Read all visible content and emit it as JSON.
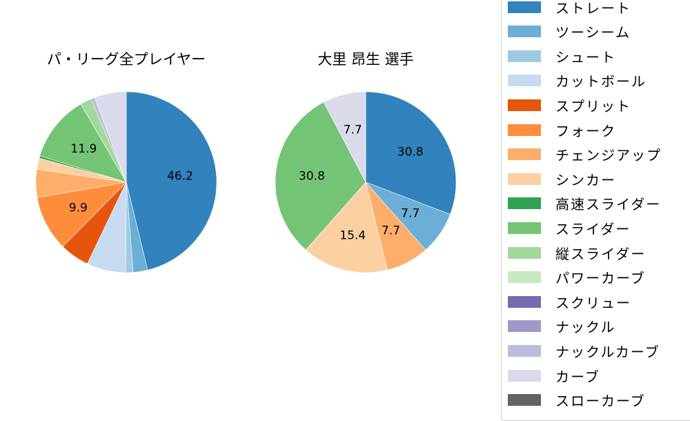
{
  "chart_data": [
    {
      "type": "pie",
      "title": "パ・リーグ全プレイヤー",
      "center": [
        183,
        264
      ],
      "radius": 131,
      "start_angle_deg": 90,
      "direction": "clockwise",
      "slices": [
        {
          "label": "ストレート",
          "value": 46.2,
          "color": "#3182bd",
          "show_label": true
        },
        {
          "label": "ツーシーム",
          "value": 2.6,
          "color": "#6baed6",
          "show_label": false
        },
        {
          "label": "シュート",
          "value": 1.3,
          "color": "#9ecae1",
          "show_label": false
        },
        {
          "label": "カットボール",
          "value": 7.0,
          "color": "#c6dbef",
          "show_label": false
        },
        {
          "label": "スプリット",
          "value": 5.3,
          "color": "#e6550d",
          "show_label": false
        },
        {
          "label": "フォーク",
          "value": 9.9,
          "color": "#fd8d3c",
          "show_label": true
        },
        {
          "label": "チェンジアップ",
          "value": 5.0,
          "color": "#fdae6b",
          "show_label": false
        },
        {
          "label": "シンカー",
          "value": 2.0,
          "color": "#fdd0a2",
          "show_label": false
        },
        {
          "label": "高速スライダー",
          "value": 0.4,
          "color": "#31a354",
          "show_label": false
        },
        {
          "label": "スライダー",
          "value": 11.9,
          "color": "#74c476",
          "show_label": true
        },
        {
          "label": "縦スライダー",
          "value": 2.0,
          "color": "#a1d99b",
          "show_label": false
        },
        {
          "label": "ナックルカーブ",
          "value": 0.7,
          "color": "#bcbddc",
          "show_label": false
        },
        {
          "label": "カーブ",
          "value": 5.7,
          "color": "#dadaeb",
          "show_label": false
        }
      ]
    },
    {
      "type": "pie",
      "title": "大里 昂生  選手",
      "center": [
        530,
        264
      ],
      "radius": 131,
      "start_angle_deg": 90,
      "direction": "clockwise",
      "slices": [
        {
          "label": "ストレート",
          "value": 30.8,
          "color": "#3182bd",
          "show_label": true
        },
        {
          "label": "ツーシーム",
          "value": 7.7,
          "color": "#6baed6",
          "show_label": true
        },
        {
          "label": "チェンジアップ",
          "value": 7.7,
          "color": "#fdae6b",
          "show_label": true
        },
        {
          "label": "シンカー",
          "value": 15.4,
          "color": "#fdd0a2",
          "show_label": true
        },
        {
          "label": "スライダー",
          "value": 30.8,
          "color": "#74c476",
          "show_label": true
        },
        {
          "label": "カーブ",
          "value": 7.7,
          "color": "#dadaeb",
          "show_label": true
        }
      ]
    }
  ],
  "titles": {
    "left": "パ・リーグ全プレイヤー",
    "right": "大里 昂生  選手"
  },
  "legend": {
    "items": [
      {
        "label": "ストレート",
        "color": "#3182bd"
      },
      {
        "label": "ツーシーム",
        "color": "#6baed6"
      },
      {
        "label": "シュート",
        "color": "#9ecae1"
      },
      {
        "label": "カットボール",
        "color": "#c6dbef"
      },
      {
        "label": "スプリット",
        "color": "#e6550d"
      },
      {
        "label": "フォーク",
        "color": "#fd8d3c"
      },
      {
        "label": "チェンジアップ",
        "color": "#fdae6b"
      },
      {
        "label": "シンカー",
        "color": "#fdd0a2"
      },
      {
        "label": "高速スライダー",
        "color": "#31a354"
      },
      {
        "label": "スライダー",
        "color": "#74c476"
      },
      {
        "label": "縦スライダー",
        "color": "#a1d99b"
      },
      {
        "label": "パワーカーブ",
        "color": "#c7e9c0"
      },
      {
        "label": "スクリュー",
        "color": "#756bb1"
      },
      {
        "label": "ナックル",
        "color": "#9e9ac8"
      },
      {
        "label": "ナックルカーブ",
        "color": "#bcbddc"
      },
      {
        "label": "カーブ",
        "color": "#dadaeb"
      },
      {
        "label": "スローカーブ",
        "color": "#636363"
      }
    ]
  }
}
